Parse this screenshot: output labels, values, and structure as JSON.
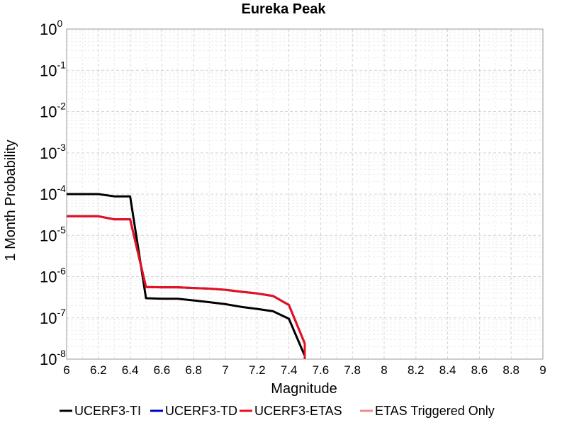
{
  "chart_data": {
    "type": "line",
    "title": "Eureka Peak",
    "xlabel": "Magnitude",
    "ylabel": "1 Month Probability",
    "xlim": [
      6,
      9
    ],
    "ylim": [
      1e-08,
      1
    ],
    "yscale": "log",
    "grid": true,
    "legend_position": "bottom",
    "x_ticks": [
      "6",
      "6.2",
      "6.4",
      "6.6",
      "6.8",
      "7",
      "7.2",
      "7.4",
      "7.6",
      "7.8",
      "8",
      "8.2",
      "8.4",
      "8.6",
      "8.8",
      "9"
    ],
    "y_ticks": [
      {
        "base": "10",
        "exp": "0"
      },
      {
        "base": "10",
        "exp": "-1"
      },
      {
        "base": "10",
        "exp": "-2"
      },
      {
        "base": "10",
        "exp": "-3"
      },
      {
        "base": "10",
        "exp": "-4"
      },
      {
        "base": "10",
        "exp": "-5"
      },
      {
        "base": "10",
        "exp": "-6"
      },
      {
        "base": "10",
        "exp": "-7"
      },
      {
        "base": "10",
        "exp": "-8"
      }
    ],
    "series": [
      {
        "name": "UCERF3-TI",
        "color": "#000000",
        "points": [
          [
            6.0,
            0.0001
          ],
          [
            6.1,
            0.0001
          ],
          [
            6.2,
            0.0001
          ],
          [
            6.3,
            8.8e-05
          ],
          [
            6.4,
            8.8e-05
          ],
          [
            6.5,
            3e-07
          ],
          [
            6.6,
            2.9e-07
          ],
          [
            6.7,
            2.9e-07
          ],
          [
            6.8,
            2.65e-07
          ],
          [
            6.9,
            2.4e-07
          ],
          [
            7.0,
            2.15e-07
          ],
          [
            7.1,
            1.85e-07
          ],
          [
            7.2,
            1.65e-07
          ],
          [
            7.3,
            1.45e-07
          ],
          [
            7.4,
            9.5e-08
          ],
          [
            7.5,
            1.2e-08
          ],
          [
            7.5,
            1e-08
          ]
        ]
      },
      {
        "name": "UCERF3-TD",
        "color": "#0000cc",
        "points": [
          [
            6.0,
            2.9e-05
          ],
          [
            6.1,
            2.9e-05
          ],
          [
            6.2,
            2.9e-05
          ],
          [
            6.3,
            2.45e-05
          ],
          [
            6.4,
            2.45e-05
          ],
          [
            6.5,
            5.6e-07
          ],
          [
            6.6,
            5.5e-07
          ],
          [
            6.7,
            5.5e-07
          ],
          [
            6.8,
            5.3e-07
          ],
          [
            6.9,
            5.1e-07
          ],
          [
            7.0,
            4.8e-07
          ],
          [
            7.1,
            4.3e-07
          ],
          [
            7.2,
            3.9e-07
          ],
          [
            7.3,
            3.4e-07
          ],
          [
            7.4,
            2.05e-07
          ],
          [
            7.5,
            2.4e-08
          ],
          [
            7.5,
            1e-08
          ]
        ]
      },
      {
        "name": "UCERF3-ETAS",
        "color": "#e8101a",
        "points": [
          [
            6.0,
            2.9e-05
          ],
          [
            6.1,
            2.9e-05
          ],
          [
            6.2,
            2.9e-05
          ],
          [
            6.3,
            2.45e-05
          ],
          [
            6.4,
            2.45e-05
          ],
          [
            6.5,
            5.6e-07
          ],
          [
            6.6,
            5.5e-07
          ],
          [
            6.7,
            5.5e-07
          ],
          [
            6.8,
            5.3e-07
          ],
          [
            6.9,
            5.1e-07
          ],
          [
            7.0,
            4.8e-07
          ],
          [
            7.1,
            4.3e-07
          ],
          [
            7.2,
            3.9e-07
          ],
          [
            7.3,
            3.4e-07
          ],
          [
            7.4,
            2.05e-07
          ],
          [
            7.5,
            2.4e-08
          ],
          [
            7.5,
            1e-08
          ]
        ]
      },
      {
        "name": "ETAS Triggered Only",
        "color": "#f08c8c",
        "points": []
      }
    ]
  }
}
